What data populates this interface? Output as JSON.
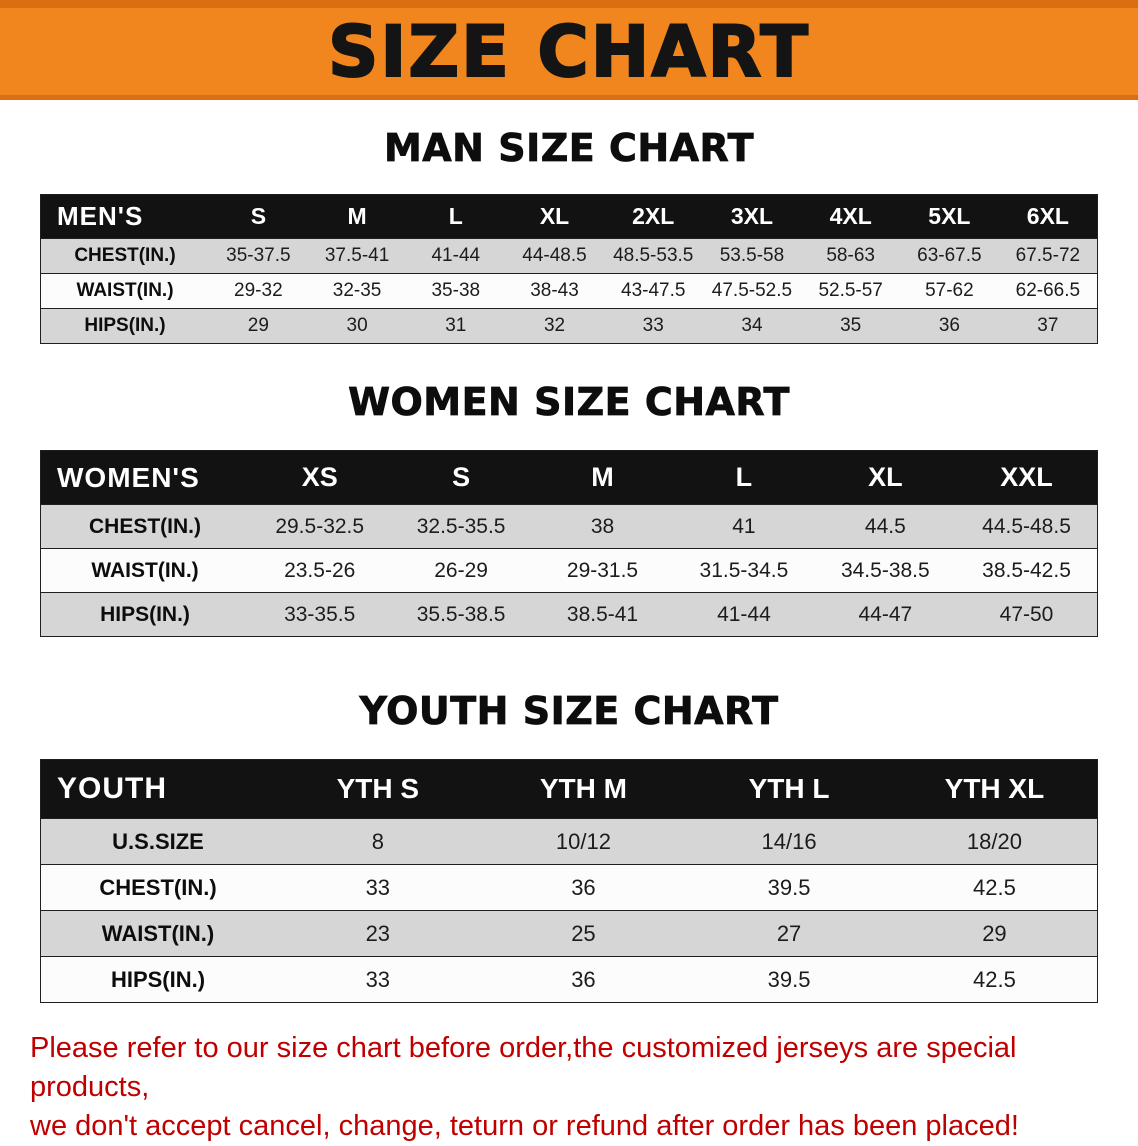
{
  "banner": {
    "title": "SIZE CHART"
  },
  "colors": {
    "banner_orange": "#f1861f",
    "banner_edge_orange": "#d96f12",
    "table_header_black": "#121212",
    "stripe_gray": "#d6d6d6",
    "notice_red": "#c00000"
  },
  "sections": {
    "men": {
      "heading": "MAN SIZE CHART",
      "table": {
        "corner_label": "MEN'S",
        "columns": [
          "S",
          "M",
          "L",
          "XL",
          "2XL",
          "3XL",
          "4XL",
          "5XL",
          "6XL"
        ],
        "rows": [
          {
            "label": "CHEST(IN.)",
            "values": [
              "35-37.5",
              "37.5-41",
              "41-44",
              "44-48.5",
              "48.5-53.5",
              "53.5-58",
              "58-63",
              "63-67.5",
              "67.5-72"
            ]
          },
          {
            "label": "WAIST(IN.)",
            "values": [
              "29-32",
              "32-35",
              "35-38",
              "38-43",
              "43-47.5",
              "47.5-52.5",
              "52.5-57",
              "57-62",
              "62-66.5"
            ]
          },
          {
            "label": "HIPS(IN.)",
            "values": [
              "29",
              "30",
              "31",
              "32",
              "33",
              "34",
              "35",
              "36",
              "37"
            ]
          }
        ]
      }
    },
    "women": {
      "heading": "WOMEN SIZE CHART",
      "table": {
        "corner_label": "WOMEN'S",
        "columns": [
          "XS",
          "S",
          "M",
          "L",
          "XL",
          "XXL"
        ],
        "rows": [
          {
            "label": "CHEST(IN.)",
            "values": [
              "29.5-32.5",
              "32.5-35.5",
              "38",
              "41",
              "44.5",
              "44.5-48.5"
            ]
          },
          {
            "label": "WAIST(IN.)",
            "values": [
              "23.5-26",
              "26-29",
              "29-31.5",
              "31.5-34.5",
              "34.5-38.5",
              "38.5-42.5"
            ]
          },
          {
            "label": "HIPS(IN.)",
            "values": [
              "33-35.5",
              "35.5-38.5",
              "38.5-41",
              "41-44",
              "44-47",
              "47-50"
            ]
          }
        ]
      }
    },
    "youth": {
      "heading": "YOUTH SIZE CHART",
      "table": {
        "corner_label": "YOUTH",
        "columns": [
          "YTH S",
          "YTH M",
          "YTH L",
          "YTH XL"
        ],
        "rows": [
          {
            "label": "U.S.SIZE",
            "values": [
              "8",
              "10/12",
              "14/16",
              "18/20"
            ]
          },
          {
            "label": "CHEST(IN.)",
            "values": [
              "33",
              "36",
              "39.5",
              "42.5"
            ]
          },
          {
            "label": "WAIST(IN.)",
            "values": [
              "23",
              "25",
              "27",
              "29"
            ]
          },
          {
            "label": "HIPS(IN.)",
            "values": [
              "33",
              "36",
              "39.5",
              "42.5"
            ]
          }
        ]
      }
    }
  },
  "footer": {
    "line1": "Please refer to our size chart before order,the customized jerseys are special products,",
    "line2": "we don't accept cancel, change, teturn or refund after order has been placed!"
  }
}
